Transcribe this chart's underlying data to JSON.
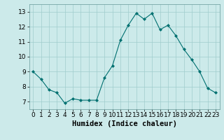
{
  "x": [
    0,
    1,
    2,
    3,
    4,
    5,
    6,
    7,
    8,
    9,
    10,
    11,
    12,
    13,
    14,
    15,
    16,
    17,
    18,
    19,
    20,
    21,
    22,
    23
  ],
  "y": [
    9.0,
    8.5,
    7.8,
    7.6,
    6.9,
    7.2,
    7.1,
    7.1,
    7.1,
    8.6,
    9.4,
    11.1,
    12.1,
    12.9,
    12.5,
    12.9,
    11.8,
    12.1,
    11.4,
    10.5,
    9.8,
    9.0,
    7.9,
    7.6
  ],
  "line_color": "#007070",
  "marker": "D",
  "marker_size": 2.0,
  "bg_color": "#cceaea",
  "grid_color": "#a0cccc",
  "xlabel": "Humidex (Indice chaleur)",
  "xlabel_fontsize": 7.5,
  "tick_fontsize": 6.5,
  "ylim": [
    6.5,
    13.5
  ],
  "yticks": [
    7,
    8,
    9,
    10,
    11,
    12,
    13
  ],
  "xlim": [
    -0.5,
    23.5
  ],
  "xticks": [
    0,
    1,
    2,
    3,
    4,
    5,
    6,
    7,
    8,
    9,
    10,
    11,
    12,
    13,
    14,
    15,
    16,
    17,
    18,
    19,
    20,
    21,
    22,
    23
  ]
}
